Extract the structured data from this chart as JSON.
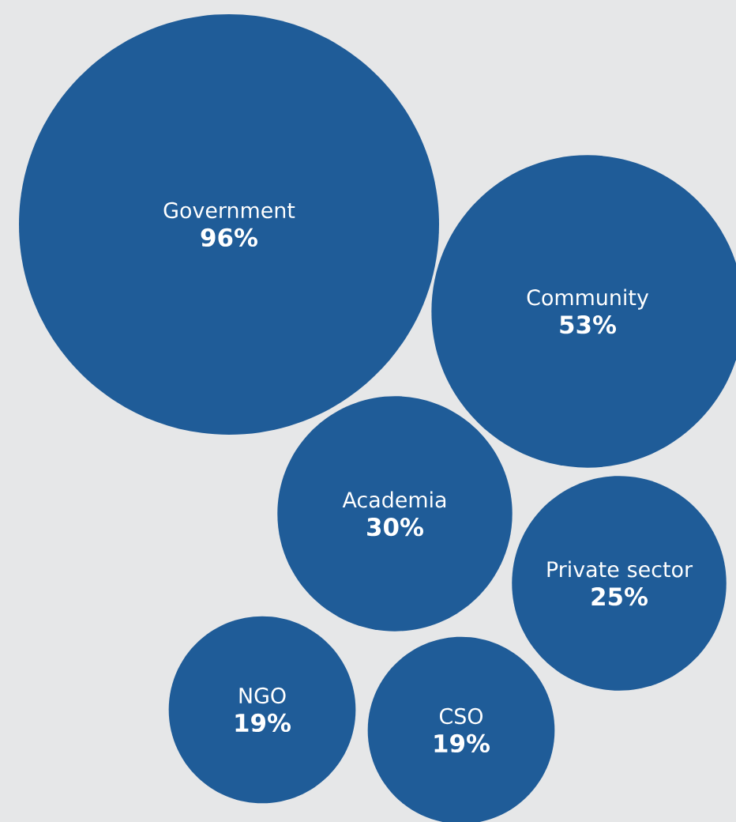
{
  "chart_data": {
    "type": "other",
    "categories": [
      "Government",
      "Community",
      "Academia",
      "Private sector",
      "NGO",
      "CSO"
    ],
    "values": [
      96,
      53,
      30,
      25,
      19,
      19
    ],
    "value_labels": [
      "96%",
      "53%",
      "30%",
      "25%",
      "19%",
      "19%"
    ],
    "color": "#1f5c98"
  }
}
